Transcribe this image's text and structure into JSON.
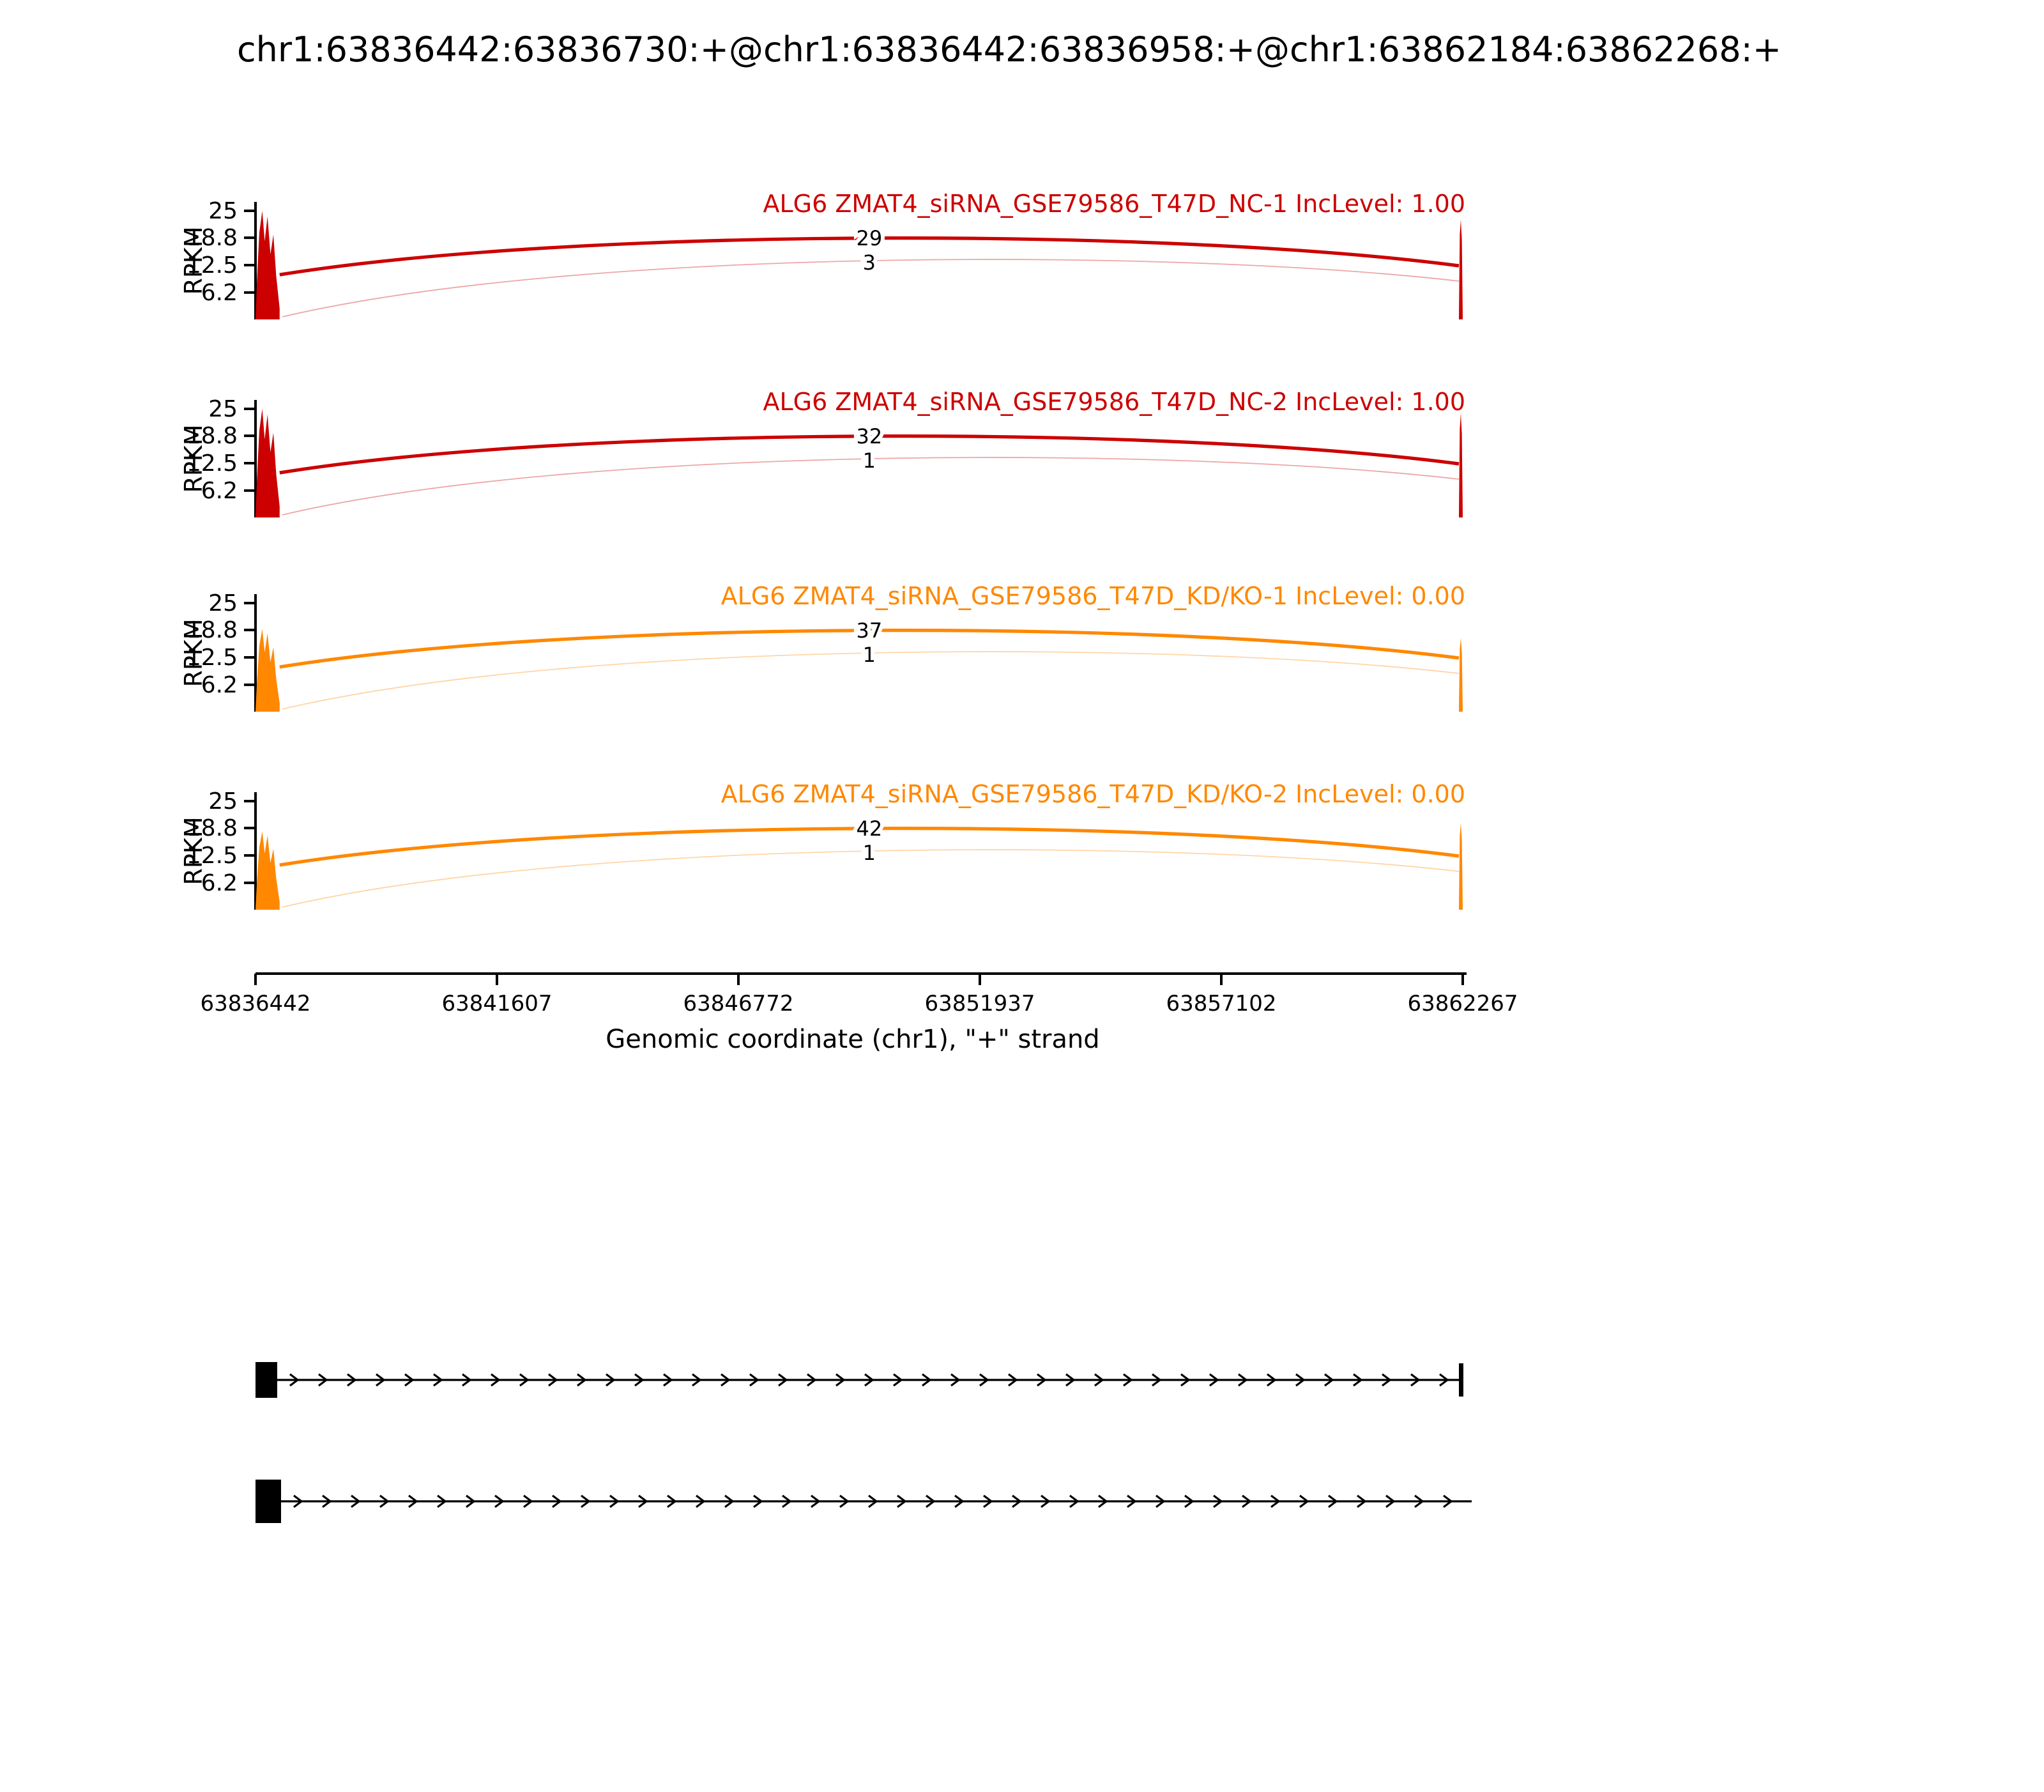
{
  "chart_data": {
    "type": "sashimi",
    "title": "chr1:63836442:63836730:+@chr1:63836442:63836958:+@chr1:63862184:63862268:+",
    "xlabel": "Genomic coordinate (chr1), \"+\" strand",
    "ylabel": "RPKM",
    "x_range": [
      63836442,
      63862267
    ],
    "x_ticks": [
      {
        "value": 63836442,
        "label": "63836442"
      },
      {
        "value": 63841607,
        "label": "63841607"
      },
      {
        "value": 63846772,
        "label": "63846772"
      },
      {
        "value": 63851937,
        "label": "63851937"
      },
      {
        "value": 63857102,
        "label": "63857102"
      },
      {
        "value": 63862267,
        "label": "63862267"
      }
    ],
    "y_ticks": [
      {
        "value": 25,
        "label": "25"
      },
      {
        "value": 18.8,
        "label": "18.8"
      },
      {
        "value": 12.5,
        "label": "12.5"
      },
      {
        "value": 6.2,
        "label": "6.2"
      }
    ],
    "y_max": 25,
    "exons": {
      "left": {
        "start": 63836442,
        "end": 63836958
      },
      "right": {
        "start": 63862184,
        "end": 63862268
      }
    },
    "tracks": [
      {
        "label": "ALG6 ZMAT4_siRNA_GSE79586_T47D_NC-1 IncLevel: 1.00",
        "color": "#CC0000",
        "inclusion_junction_reads": "29",
        "skipping_junction_reads": "3",
        "peak_left_rpkm": 25,
        "peak_right_rpkm": 23
      },
      {
        "label": "ALG6 ZMAT4_siRNA_GSE79586_T47D_NC-2 IncLevel: 1.00",
        "color": "#CC0000",
        "inclusion_junction_reads": "32",
        "skipping_junction_reads": "1",
        "peak_left_rpkm": 25,
        "peak_right_rpkm": 24
      },
      {
        "label": "ALG6 ZMAT4_siRNA_GSE79586_T47D_KD/KO-1 IncLevel: 0.00",
        "color": "#FF8800",
        "inclusion_junction_reads": "37",
        "skipping_junction_reads": "1",
        "peak_left_rpkm": 19,
        "peak_right_rpkm": 17
      },
      {
        "label": "ALG6 ZMAT4_siRNA_GSE79586_T47D_KD/KO-2 IncLevel: 0.00",
        "color": "#FF8800",
        "inclusion_junction_reads": "42",
        "skipping_junction_reads": "1",
        "peak_left_rpkm": 18,
        "peak_right_rpkm": 20
      }
    ],
    "isoforms": [
      {
        "exons": [
          {
            "start": 63836442,
            "end": 63836730
          },
          {
            "start": 63862184,
            "end": 63862268
          }
        ],
        "extends_past_view": false
      },
      {
        "exons": [
          {
            "start": 63836442,
            "end": 63836958
          }
        ],
        "extends_past_view": true
      }
    ]
  }
}
